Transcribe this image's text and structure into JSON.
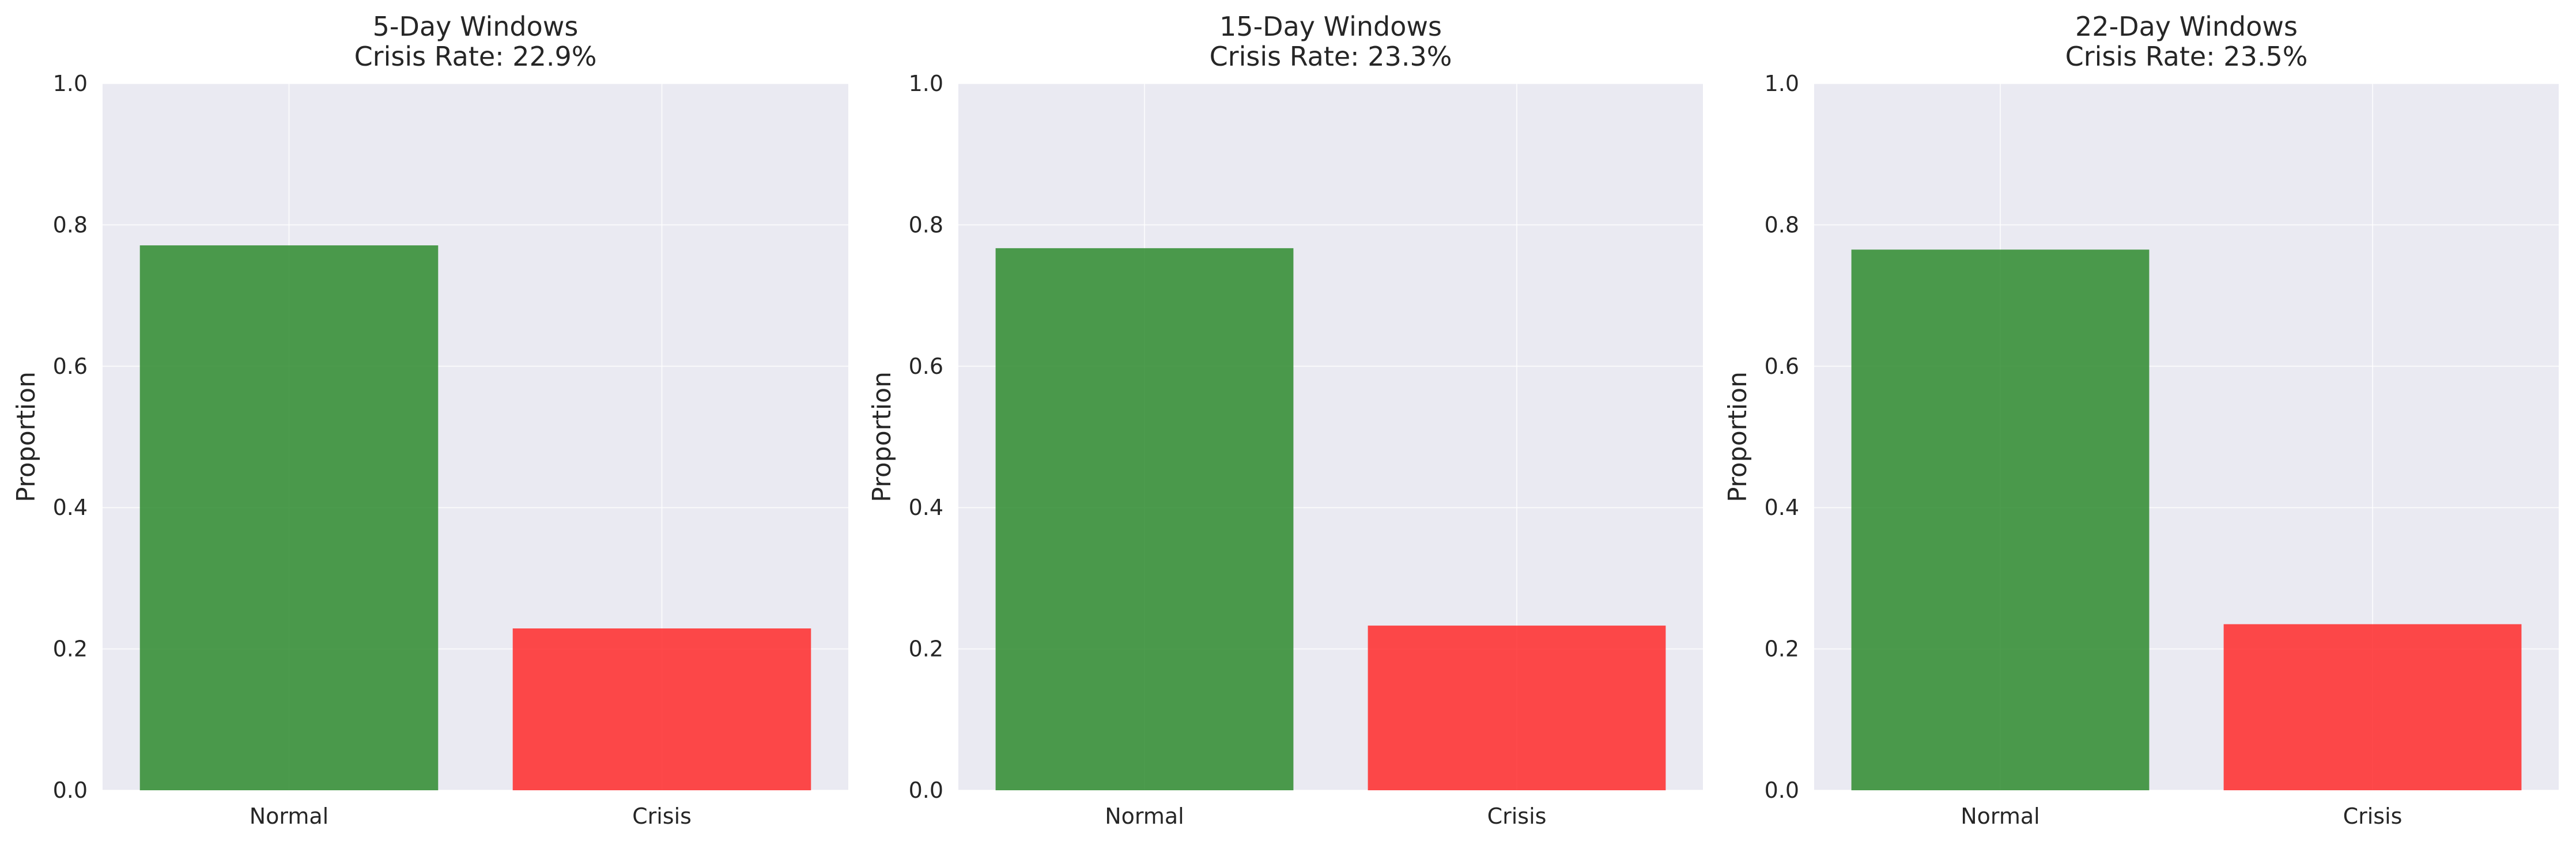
{
  "chart_data": [
    {
      "type": "bar",
      "title": "5-Day Windows\nCrisis Rate: 22.9%",
      "title_lines": [
        "5-Day Windows",
        "Crisis Rate: 22.9%"
      ],
      "xlabel": "",
      "ylabel": "Proportion",
      "categories": [
        "Normal",
        "Crisis"
      ],
      "values": [
        0.771,
        0.229
      ],
      "bar_colors": [
        "#2e8b2e",
        "#ff2a2a"
      ],
      "ylim": [
        0,
        1.0
      ],
      "yticks": [
        "0.0",
        "0.2",
        "0.4",
        "0.6",
        "0.8",
        "1.0"
      ],
      "grid": true
    },
    {
      "type": "bar",
      "title": "15-Day Windows\nCrisis Rate: 23.3%",
      "title_lines": [
        "15-Day Windows",
        "Crisis Rate: 23.3%"
      ],
      "xlabel": "",
      "ylabel": "Proportion",
      "categories": [
        "Normal",
        "Crisis"
      ],
      "values": [
        0.767,
        0.233
      ],
      "bar_colors": [
        "#2e8b2e",
        "#ff2a2a"
      ],
      "ylim": [
        0,
        1.0
      ],
      "yticks": [
        "0.0",
        "0.2",
        "0.4",
        "0.6",
        "0.8",
        "1.0"
      ],
      "grid": true
    },
    {
      "type": "bar",
      "title": "22-Day Windows\nCrisis Rate: 23.5%",
      "title_lines": [
        "22-Day Windows",
        "Crisis Rate: 23.5%"
      ],
      "xlabel": "",
      "ylabel": "Proportion",
      "categories": [
        "Normal",
        "Crisis"
      ],
      "values": [
        0.765,
        0.235
      ],
      "bar_colors": [
        "#2e8b2e",
        "#ff2a2a"
      ],
      "ylim": [
        0,
        1.0
      ],
      "yticks": [
        "0.0",
        "0.2",
        "0.4",
        "0.6",
        "0.8",
        "1.0"
      ],
      "grid": true
    }
  ],
  "style": {
    "axes_background": "#eaeaf2",
    "grid_color": "#ffffff",
    "text_color": "#262626",
    "bar_alpha": 0.85
  }
}
